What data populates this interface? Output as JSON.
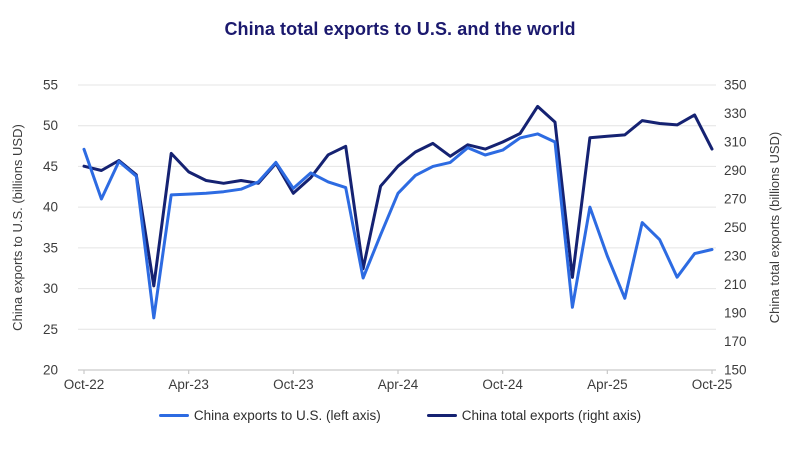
{
  "title": "China total exports to U.S. and the world",
  "colors": {
    "title": "#1b196e",
    "grid": "#e4e4e4",
    "axis_line": "#c9c9c9",
    "tick_text": "#3c3c3c",
    "legend_text": "#2e2e2e"
  },
  "chart_data": {
    "type": "line",
    "title": "China total exports to U.S. and the world",
    "grid": "horizontal",
    "legend_position": "bottom",
    "categories": [
      "Oct-22",
      "Nov-22",
      "Dec-22",
      "Jan-23",
      "Feb-23",
      "Mar-23",
      "Apr-23",
      "May-23",
      "Jun-23",
      "Jul-23",
      "Aug-23",
      "Sep-23",
      "Oct-23",
      "Nov-23",
      "Dec-23",
      "Jan-24",
      "Feb-24",
      "Mar-24",
      "Apr-24",
      "May-24",
      "Jun-24",
      "Jul-24",
      "Aug-24",
      "Sep-24",
      "Oct-24",
      "Nov-24",
      "Dec-24",
      "Jan-25",
      "Feb-25",
      "Mar-25",
      "Apr-25",
      "May-25",
      "Jun-25",
      "Jul-25",
      "Aug-25",
      "Sep-25",
      "Oct-25"
    ],
    "x_tick_labels": [
      "Oct-22",
      "Apr-23",
      "Oct-23",
      "Apr-24",
      "Oct-24",
      "Apr-25",
      "Oct-25"
    ],
    "x_tick_every": 6,
    "left_axis": {
      "label": "China exports to U.S. (billions USD)",
      "min": 20,
      "max": 55,
      "ticks": [
        20,
        25,
        30,
        35,
        40,
        45,
        50,
        55
      ]
    },
    "right_axis": {
      "label": "China total exports (billions USD)",
      "min": 150,
      "max": 350,
      "ticks": [
        150,
        170,
        190,
        210,
        230,
        250,
        270,
        290,
        310,
        330,
        350
      ]
    },
    "series": [
      {
        "name": "China exports to U.S. (left axis)",
        "axis": "left",
        "color": "#2d6be2",
        "values": [
          47.1,
          41.0,
          45.6,
          43.8,
          26.4,
          41.5,
          41.6,
          41.7,
          41.9,
          42.2,
          43.1,
          45.5,
          42.3,
          44.2,
          43.1,
          42.4,
          31.3,
          36.6,
          41.7,
          43.9,
          45.0,
          45.5,
          47.3,
          46.4,
          47.0,
          48.5,
          49.0,
          48.0,
          27.7,
          40.0,
          34.0,
          28.8,
          38.1,
          36.0,
          31.4,
          34.3,
          34.8
        ]
      },
      {
        "name": "China total exports (right axis)",
        "axis": "right",
        "color": "#152272",
        "values": [
          293,
          290,
          297,
          287,
          209,
          302,
          289,
          283,
          281,
          283,
          281,
          295,
          274,
          285,
          301,
          307,
          221,
          279,
          293,
          303,
          309,
          300,
          308,
          305,
          310,
          316,
          335,
          324,
          215,
          313,
          314,
          315,
          325,
          323,
          322,
          329,
          305
        ]
      }
    ]
  }
}
